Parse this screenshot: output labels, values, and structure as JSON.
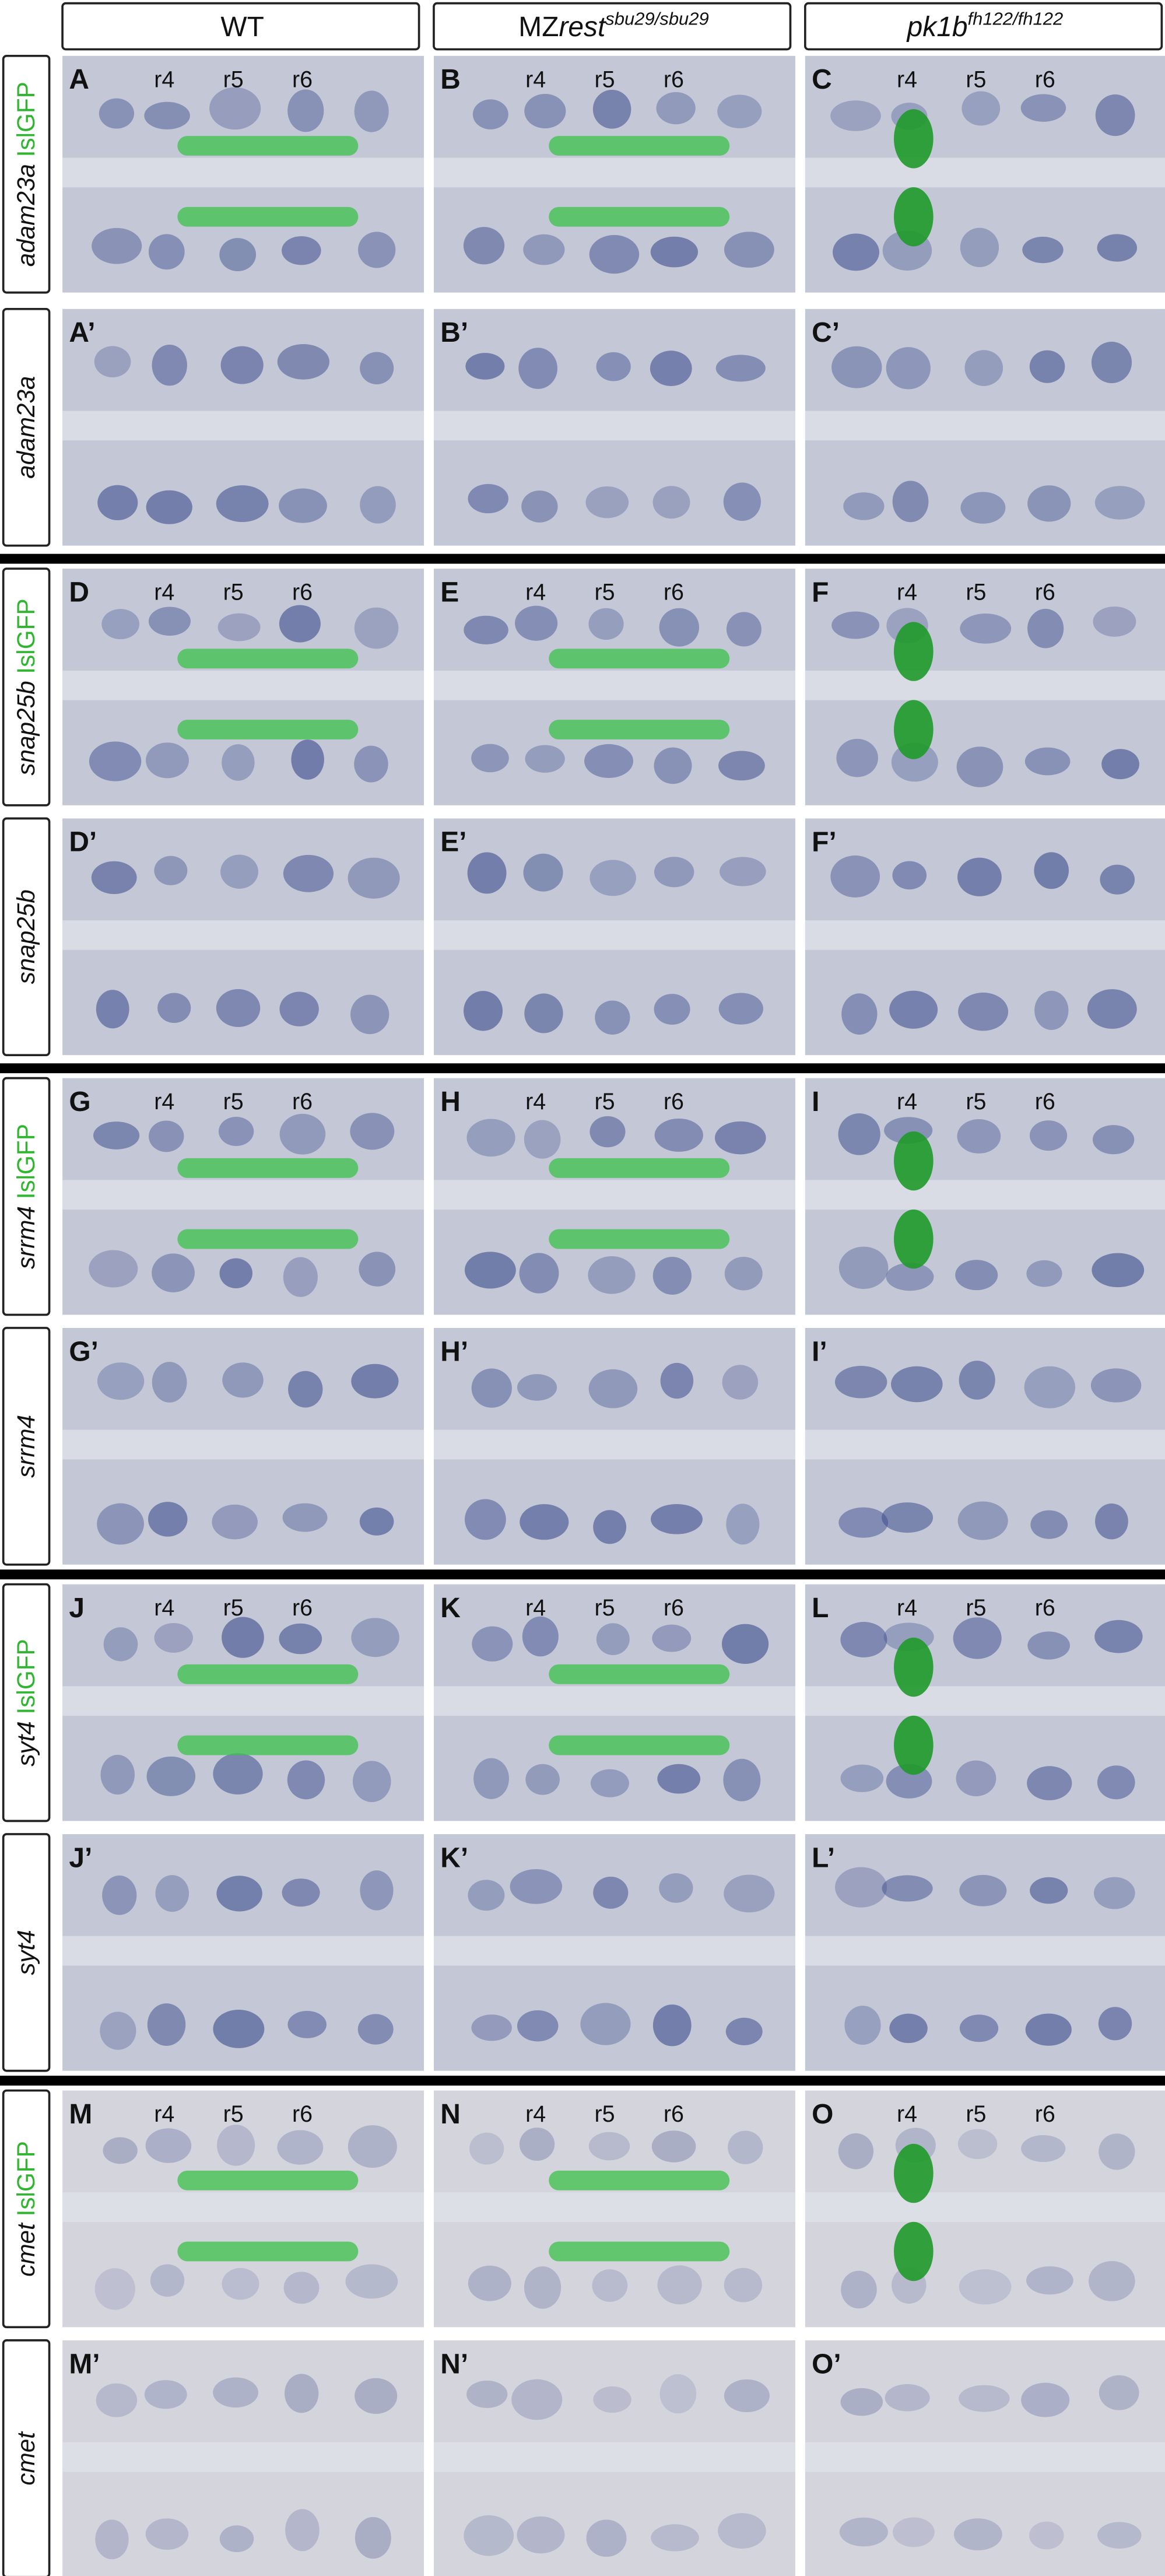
{
  "header": {
    "columns": [
      {
        "text": "WT"
      },
      {
        "base": "MZ",
        "italic": "rest",
        "sup": "sbu29/sbu29"
      },
      {
        "italic": "pk1b",
        "sup": "fh122/fh122"
      }
    ]
  },
  "rows": [
    {
      "gene": "adam23a",
      "marker": "IslGFP",
      "panels": [
        {
          "letter": "A",
          "regions": [
            "r4",
            "r5",
            "r6"
          ]
        },
        {
          "letter": "B",
          "regions": [
            "r4",
            "r5",
            "r6"
          ]
        },
        {
          "letter": "C",
          "regions": [
            "r4",
            "r5",
            "r6"
          ]
        }
      ]
    },
    {
      "gene": "adam23a",
      "panels": [
        {
          "letter": "A’"
        },
        {
          "letter": "B’"
        },
        {
          "letter": "C’"
        }
      ]
    },
    {
      "gene": "snap25b",
      "marker": "IslGFP",
      "panels": [
        {
          "letter": "D",
          "regions": [
            "r4",
            "r5",
            "r6"
          ]
        },
        {
          "letter": "E",
          "regions": [
            "r4",
            "r5",
            "r6"
          ]
        },
        {
          "letter": "F",
          "regions": [
            "r4",
            "r5",
            "r6"
          ]
        }
      ]
    },
    {
      "gene": "snap25b",
      "panels": [
        {
          "letter": "D’"
        },
        {
          "letter": "E’"
        },
        {
          "letter": "F’"
        }
      ]
    },
    {
      "gene": "srrm4",
      "marker": "IslGFP",
      "panels": [
        {
          "letter": "G",
          "regions": [
            "r4",
            "r5",
            "r6"
          ]
        },
        {
          "letter": "H",
          "regions": [
            "r4",
            "r5",
            "r6"
          ]
        },
        {
          "letter": "I",
          "regions": [
            "r4",
            "r5",
            "r6"
          ]
        }
      ]
    },
    {
      "gene": "srrm4",
      "panels": [
        {
          "letter": "G’"
        },
        {
          "letter": "H’"
        },
        {
          "letter": "I’"
        }
      ]
    },
    {
      "gene": "syt4",
      "marker": "IslGFP",
      "panels": [
        {
          "letter": "J",
          "regions": [
            "r4",
            "r5",
            "r6"
          ]
        },
        {
          "letter": "K",
          "regions": [
            "r4",
            "r5",
            "r6"
          ]
        },
        {
          "letter": "L",
          "regions": [
            "r4",
            "r5",
            "r6"
          ]
        }
      ]
    },
    {
      "gene": "syt4",
      "panels": [
        {
          "letter": "J’"
        },
        {
          "letter": "K’"
        },
        {
          "letter": "L’"
        }
      ]
    },
    {
      "gene": "cmet",
      "marker": "IslGFP",
      "panels": [
        {
          "letter": "M",
          "regions": [
            "r4",
            "r5",
            "r6"
          ]
        },
        {
          "letter": "N",
          "regions": [
            "r4",
            "r5",
            "r6"
          ]
        },
        {
          "letter": "O",
          "regions": [
            "r4",
            "r5",
            "r6"
          ]
        }
      ]
    },
    {
      "gene": "cmet",
      "panels": [
        {
          "letter": "M’"
        },
        {
          "letter": "N’"
        },
        {
          "letter": "O’"
        }
      ]
    }
  ]
}
